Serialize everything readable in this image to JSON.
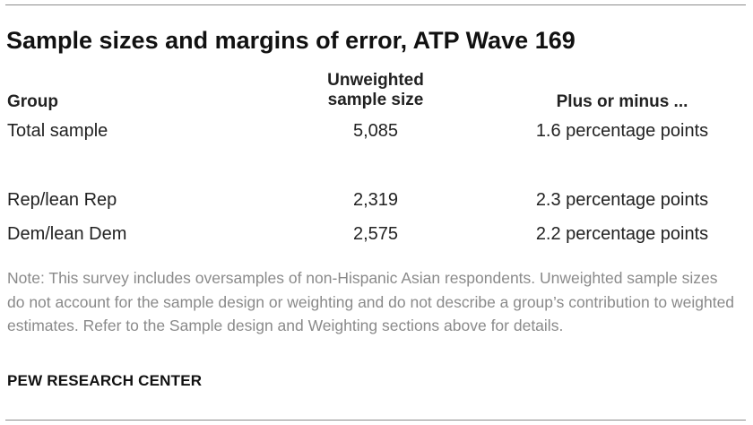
{
  "title": "Sample sizes and margins of error, ATP Wave 169",
  "table": {
    "headers": {
      "group": "Group",
      "sample_size_line1": "Unweighted",
      "sample_size_line2": "sample size",
      "margin": "Plus or minus ..."
    },
    "rows": [
      {
        "group": "Total sample",
        "sample_size": "5,085",
        "margin": "1.6 percentage points"
      },
      {
        "group": "Rep/lean Rep",
        "sample_size": "2,319",
        "margin": "2.3 percentage points"
      },
      {
        "group": "Dem/lean Dem",
        "sample_size": "2,575",
        "margin": "2.2 percentage points"
      }
    ]
  },
  "note": "Note: This survey includes oversamples of non-Hispanic Asian respondents. Unweighted sample sizes do not account for the sample design or weighting and do not describe a group’s contribution to weighted estimates. Refer to the Sample design and Weighting sections above for details.",
  "source": "PEW RESEARCH CENTER"
}
